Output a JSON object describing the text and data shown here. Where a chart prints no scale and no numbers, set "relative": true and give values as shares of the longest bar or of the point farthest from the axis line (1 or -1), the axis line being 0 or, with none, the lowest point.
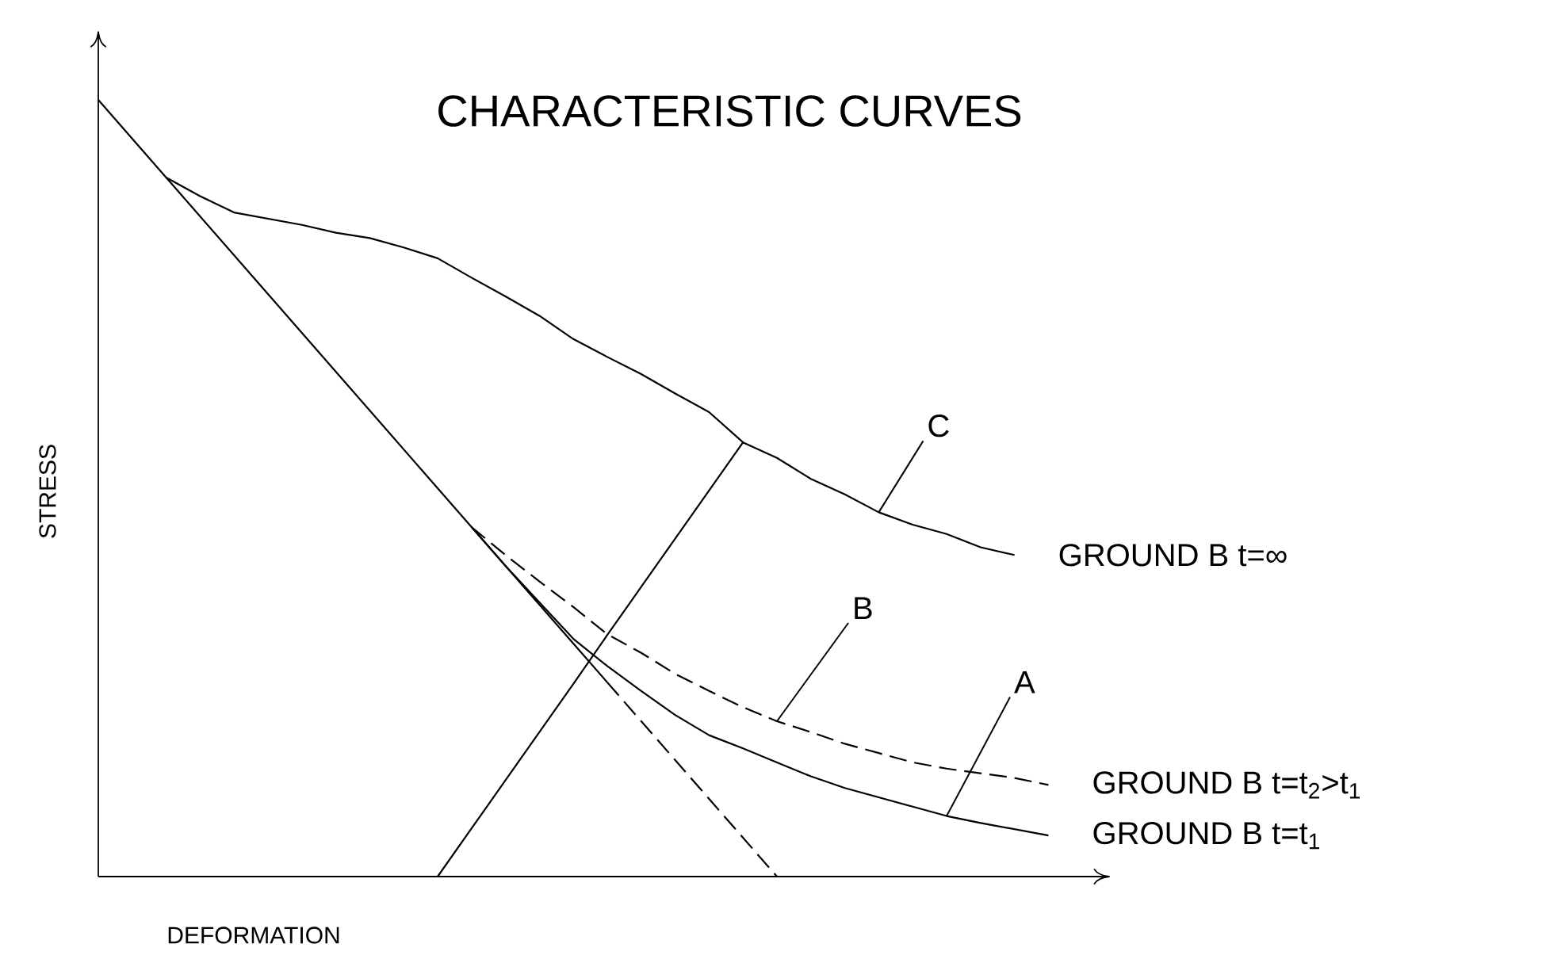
{
  "chart_data": {
    "type": "line",
    "relative": true,
    "title": "CHARACTERISTIC CURVES",
    "xlabel": "DEFORMATION",
    "ylabel": "STRESS",
    "categories": [
      null,
      null,
      null,
      null,
      null,
      null,
      null,
      null,
      null,
      null,
      null,
      null,
      null,
      null,
      null,
      null,
      null,
      null,
      null,
      null,
      null,
      null,
      null,
      null,
      null,
      null,
      null,
      null,
      null,
      null
    ],
    "annotations": [
      "C",
      "B",
      "A"
    ],
    "series": [
      {
        "name": "GROUND B  t=∞",
        "color": "#000000",
        "line_style": "solid",
        "values": [
          null,
          null,
          0.9,
          0.876,
          0.855,
          0.847,
          0.839,
          0.829,
          0.822,
          0.81,
          0.796,
          0.771,
          0.747,
          0.722,
          0.692,
          0.669,
          0.647,
          0.622,
          0.598,
          0.559,
          0.539,
          0.512,
          0.492,
          0.469,
          0.453,
          0.441,
          0.424,
          0.414,
          null,
          null
        ]
      },
      {
        "name": "GROUND B  t=t$_{2}$>t$_{1}$",
        "color": "#000000",
        "line_style": "dashed",
        "values": [
          null,
          null,
          null,
          null,
          null,
          null,
          null,
          null,
          null,
          null,
          null,
          0.45,
          0.414,
          0.38,
          0.347,
          0.312,
          0.288,
          0.261,
          0.239,
          0.218,
          0.2,
          0.186,
          0.171,
          0.159,
          0.147,
          0.139,
          0.133,
          0.127,
          0.118,
          null
        ]
      },
      {
        "name": "GROUND B  t=t$_{1}$",
        "color": "#000000",
        "line_style": "solid",
        "values": [
          null,
          null,
          null,
          null,
          null,
          null,
          null,
          null,
          null,
          null,
          null,
          0.45,
          0.4,
          0.353,
          0.306,
          0.271,
          0.239,
          0.208,
          0.182,
          0.165,
          0.147,
          0.129,
          0.114,
          0.102,
          0.09,
          0.078,
          0.069,
          0.061,
          0.053,
          null
        ]
      },
      {
        "color": "#000000",
        "line_style": "solid",
        "values": [
          1,
          0.95,
          0.9,
          0.85,
          0.8,
          0.75,
          0.7,
          0.65,
          0.6,
          0.55,
          0.5,
          0.45,
          0.4,
          0.35,
          0.3,
          0.25,
          null,
          null,
          null,
          null,
          null,
          null,
          null,
          null,
          null,
          null,
          null,
          null,
          null,
          null
        ]
      },
      {
        "color": "#000000",
        "line_style": "dashed",
        "values": [
          null,
          null,
          null,
          null,
          null,
          null,
          null,
          null,
          null,
          null,
          null,
          null,
          null,
          null,
          null,
          0.25,
          0.2,
          0.15,
          0.1,
          0.05,
          0,
          null,
          null,
          null,
          null,
          null,
          null,
          null,
          null,
          null
        ]
      },
      {
        "color": "#000000",
        "line_style": "solid",
        "values": [
          null,
          null,
          null,
          null,
          null,
          null,
          null,
          null,
          null,
          null,
          0,
          0.062,
          0.124,
          0.186,
          0.248,
          0.311,
          0.373,
          0.435,
          0.497,
          0.559,
          null,
          null,
          null,
          null,
          null,
          null,
          null,
          null,
          null,
          null
        ]
      }
    ]
  }
}
